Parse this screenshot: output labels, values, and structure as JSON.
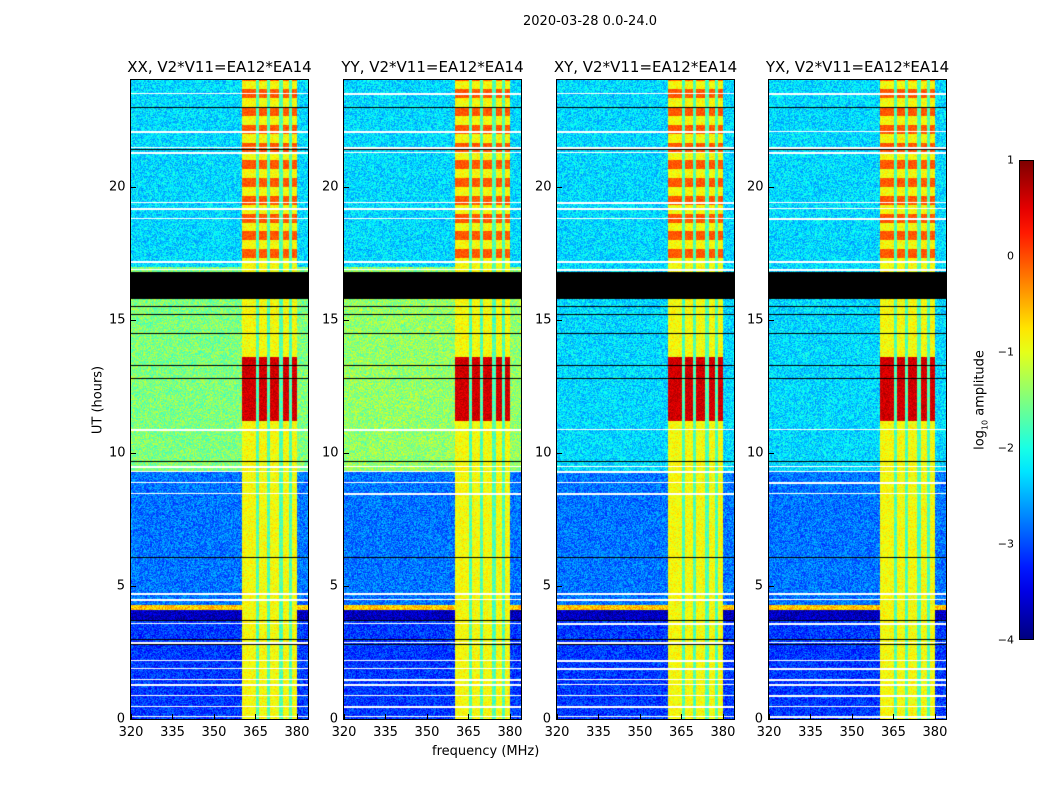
{
  "chart_data": {
    "type": "heatmap",
    "title": "2020-03-28 0.0-24.0",
    "xlabel": "frequency (MHz)",
    "ylabel": "UT (hours)",
    "xlim": [
      320,
      384
    ],
    "ylim": [
      0,
      24
    ],
    "xticks": [
      "320",
      "335",
      "350",
      "365",
      "380"
    ],
    "xtick_values": [
      320,
      335,
      350,
      365,
      380
    ],
    "yticks": [
      "0",
      "5",
      "10",
      "15",
      "20"
    ],
    "ytick_values": [
      0,
      5,
      10,
      15,
      20
    ],
    "panels": [
      {
        "title": "XX, V2*V11=EA12*EA14",
        "mid_level": -1.5
      },
      {
        "title": "YY, V2*V11=EA12*EA14",
        "mid_level": -1.4
      },
      {
        "title": "XY, V2*V11=EA12*EA14",
        "mid_level": -2.3
      },
      {
        "title": "YX, V2*V11=EA12*EA14",
        "mid_level": -2.3
      }
    ],
    "colorbar": {
      "label": "log10 amplitude",
      "label_main": "log",
      "label_sub": "10",
      "label_rest": " amplitude",
      "clim": [
        -4,
        1
      ],
      "ticks": [
        "1",
        "0",
        "−1",
        "−2",
        "−3",
        "−4"
      ],
      "tick_values": [
        1,
        0,
        -1,
        -2,
        -3,
        -4
      ],
      "colormap": "jet"
    },
    "rfi_band_mhz": [
      360,
      380
    ],
    "rfi_notch_mhz": [
      365.5,
      369.5,
      374,
      377.5
    ],
    "strong_rfi_hours": [
      11.2,
      13.6
    ],
    "black_band_hours": [
      15.8,
      16.8
    ],
    "flagged_hours": [
      0.1,
      0.5,
      0.9,
      1.3,
      1.5,
      1.9,
      2.2,
      2.9,
      3.6,
      4.5,
      4.75,
      8.5,
      8.9,
      9.3,
      9.5,
      10.9,
      16.9,
      17.2,
      18.8,
      19.2,
      19.4,
      21.3,
      21.5,
      22.1,
      23.5
    ],
    "black_line_hours": [
      2.8,
      3.0,
      3.7,
      6.1,
      9.7,
      10.9,
      12.8,
      13.3,
      14.5,
      15.2,
      15.5,
      19.4,
      21.3,
      21.4,
      23.0
    ]
  }
}
